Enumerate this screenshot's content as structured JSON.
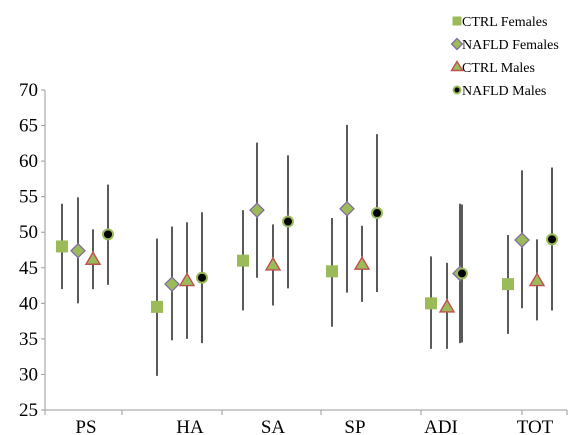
{
  "chart_data": {
    "type": "scatter",
    "title": "",
    "xlabel": "",
    "ylabel": "",
    "categories": [
      "PS",
      "HA",
      "SA",
      "SP",
      "ADI",
      "TOT"
    ],
    "ylim": [
      25,
      70
    ],
    "yticks": [
      25,
      30,
      35,
      40,
      45,
      50,
      55,
      60,
      65,
      70
    ],
    "grid": false,
    "legend_position": "top-right",
    "series": [
      {
        "name": "CTRL Females",
        "marker": "square",
        "color": "#9bbb59",
        "edge": "#9bbb59",
        "values": [
          48.0,
          39.5,
          46.0,
          44.5,
          40.0,
          42.7
        ],
        "low": [
          42.0,
          29.8,
          39.0,
          36.7,
          33.6,
          35.7
        ],
        "high": [
          54.0,
          49.1,
          53.1,
          52.0,
          46.6,
          49.6
        ]
      },
      {
        "name": "NAFLD Females",
        "marker": "diamond",
        "color": "#9bbb59",
        "edge": "#8064a2",
        "values": [
          47.4,
          42.7,
          53.1,
          53.3,
          44.2,
          48.9
        ],
        "low": [
          40.0,
          34.8,
          43.6,
          41.5,
          34.4,
          39.3
        ],
        "high": [
          54.9,
          50.8,
          62.6,
          65.1,
          54.0,
          58.7
        ]
      },
      {
        "name": "CTRL Males",
        "marker": "triangle",
        "color": "#9bbb59",
        "edge": "#c0504d",
        "values": [
          46.2,
          43.2,
          45.4,
          45.5,
          39.5,
          43.2
        ],
        "low": [
          42.0,
          35.0,
          39.7,
          40.2,
          33.6,
          37.6
        ],
        "high": [
          50.4,
          51.4,
          51.1,
          50.9,
          45.7,
          49.0
        ]
      },
      {
        "name": "NAFLD Males",
        "marker": "circle",
        "color": "#000000",
        "edge": "#9bbb59",
        "values": [
          49.7,
          43.6,
          51.5,
          52.7,
          44.2,
          49.0
        ],
        "low": [
          42.6,
          34.4,
          42.1,
          41.6,
          34.5,
          39.0
        ],
        "high": [
          56.7,
          52.8,
          60.8,
          63.8,
          53.9,
          59.1
        ]
      }
    ]
  }
}
